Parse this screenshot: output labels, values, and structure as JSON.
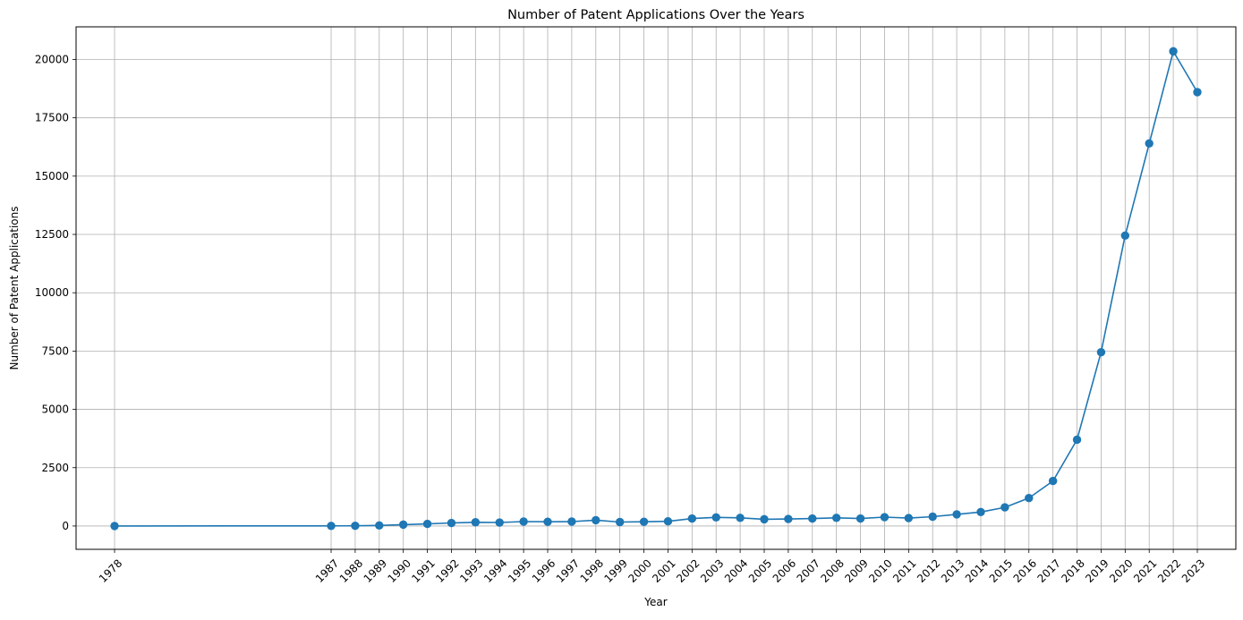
{
  "chart_data": {
    "type": "line",
    "title": "Number of Patent Applications Over the Years",
    "xlabel": "Year",
    "ylabel": "Number of Patent Applications",
    "x": [
      1978,
      1987,
      1988,
      1989,
      1990,
      1991,
      1992,
      1993,
      1994,
      1995,
      1996,
      1997,
      1998,
      1999,
      2000,
      2001,
      2002,
      2003,
      2004,
      2005,
      2006,
      2007,
      2008,
      2009,
      2010,
      2011,
      2012,
      2013,
      2014,
      2015,
      2016,
      2017,
      2018,
      2019,
      2020,
      2021,
      2022,
      2023
    ],
    "y": [
      1,
      5,
      10,
      25,
      60,
      90,
      130,
      160,
      150,
      190,
      180,
      190,
      250,
      170,
      180,
      200,
      320,
      370,
      350,
      290,
      300,
      320,
      350,
      320,
      380,
      340,
      400,
      500,
      600,
      800,
      1200,
      1930,
      3700,
      7450,
      12450,
      16400,
      20350,
      18600
    ],
    "xlim": [
      1976.4,
      2024.6
    ],
    "ylim": [
      -1000,
      21400
    ],
    "yticks": [
      0,
      2500,
      5000,
      7500,
      10000,
      12500,
      15000,
      17500,
      20000
    ],
    "xtick_rotation": 45,
    "grid": true,
    "series_color": "#1f77b4",
    "grid_color": "#b0b0b0",
    "marker": "circle"
  }
}
